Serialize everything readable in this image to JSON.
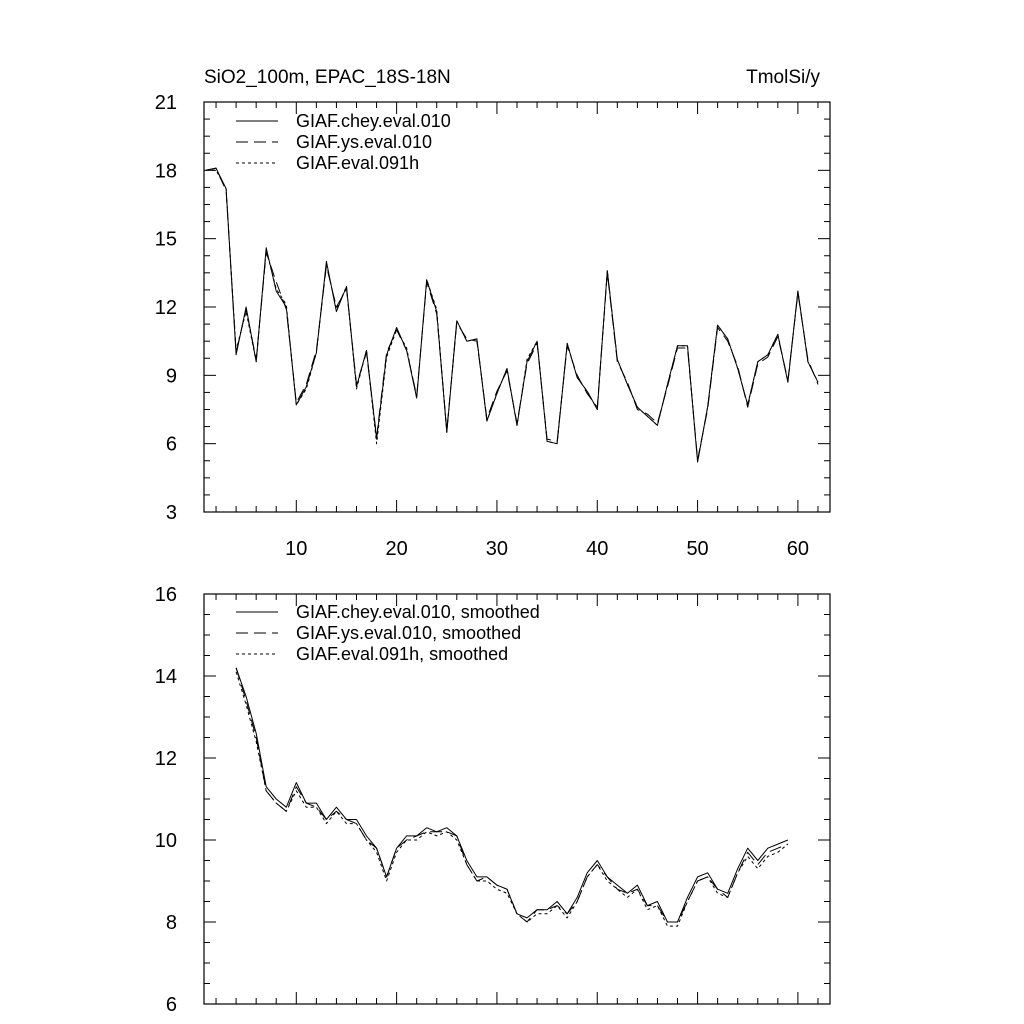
{
  "header": {
    "left_title": "SiO2_100m, EPAC_18S-18N",
    "right_title": "TmolSi/y"
  },
  "chart_data": [
    {
      "type": "line",
      "title": "",
      "xlabel": "",
      "ylabel": "",
      "xlim": [
        0.8,
        63.2
      ],
      "ylim": [
        3,
        21
      ],
      "x_ticks": [
        10,
        20,
        30,
        40,
        50,
        60
      ],
      "y_ticks": [
        3,
        6,
        9,
        12,
        15,
        18,
        21
      ],
      "legend_position": "top-left",
      "grid": false,
      "series": [
        {
          "name": "GIAF.chey.eval.010",
          "dash": "solid",
          "x": [
            1,
            2,
            3,
            4,
            5,
            6,
            7,
            8,
            9,
            10,
            11,
            12,
            13,
            14,
            15,
            16,
            17,
            18,
            19,
            20,
            21,
            22,
            23,
            24,
            25,
            26,
            27,
            28,
            29,
            30,
            31,
            32,
            33,
            34,
            35,
            36,
            37,
            38,
            39,
            40,
            41,
            42,
            43,
            44,
            45,
            46,
            47,
            48,
            49,
            50,
            51,
            52,
            53,
            54,
            55,
            56,
            57,
            58,
            59,
            60,
            61,
            62
          ],
          "values": [
            18.0,
            18.1,
            17.2,
            9.9,
            12.0,
            9.6,
            14.6,
            12.7,
            12.0,
            7.7,
            8.5,
            10.0,
            14.0,
            11.8,
            12.9,
            8.5,
            10.1,
            6.2,
            9.9,
            11.1,
            10.1,
            8.0,
            13.2,
            11.8,
            6.5,
            11.4,
            10.5,
            10.6,
            7.0,
            8.2,
            9.3,
            6.8,
            9.6,
            10.5,
            6.1,
            6.0,
            10.4,
            8.9,
            8.3,
            7.5,
            13.6,
            9.7,
            8.6,
            7.6,
            7.2,
            6.8,
            8.6,
            10.3,
            10.3,
            5.2,
            7.6,
            11.2,
            10.6,
            9.3,
            7.7,
            9.6,
            9.9,
            10.8,
            8.7,
            12.7,
            9.6,
            8.7
          ]
        },
        {
          "name": "GIAF.ys.eval.010",
          "dash": "long-dash",
          "x": [
            1,
            2,
            3,
            4,
            5,
            6,
            7,
            8,
            9,
            10,
            11,
            12,
            13,
            14,
            15,
            16,
            17,
            18,
            19,
            20,
            21,
            22,
            23,
            24,
            25,
            26,
            27,
            28,
            29,
            30,
            31,
            32,
            33,
            34,
            35,
            36,
            37,
            38,
            39,
            40,
            41,
            42,
            43,
            44,
            45,
            46,
            47,
            48,
            49,
            50,
            51,
            52,
            53,
            54,
            55,
            56,
            57,
            58,
            59,
            60,
            61,
            62
          ],
          "values": [
            18.0,
            18.1,
            17.1,
            10.0,
            11.9,
            9.7,
            14.4,
            13.1,
            11.9,
            7.8,
            8.6,
            10.1,
            13.8,
            12.0,
            12.8,
            8.6,
            10.0,
            6.3,
            10.0,
            11.0,
            10.1,
            8.1,
            13.1,
            11.7,
            6.6,
            11.3,
            10.6,
            10.5,
            7.1,
            8.3,
            9.2,
            6.9,
            9.5,
            10.4,
            6.2,
            6.1,
            10.3,
            9.0,
            8.2,
            7.6,
            13.5,
            9.6,
            8.7,
            7.5,
            7.3,
            6.9,
            8.5,
            10.2,
            10.2,
            5.3,
            7.5,
            11.1,
            10.5,
            9.4,
            7.6,
            9.5,
            9.8,
            10.7,
            8.8,
            12.6,
            9.7,
            8.6
          ]
        },
        {
          "name": "GIAF.eval.091h",
          "dash": "dotted",
          "x": [
            1,
            2,
            3,
            4,
            5,
            6,
            7,
            8,
            9,
            10,
            11,
            12,
            13,
            14,
            15,
            16,
            17,
            18,
            19,
            20,
            21,
            22,
            23,
            24,
            25,
            26,
            27,
            28,
            29,
            30,
            31,
            32,
            33,
            34,
            35,
            36,
            37,
            38,
            39,
            40,
            41,
            42,
            43,
            44,
            45,
            46,
            47,
            48,
            49,
            50,
            51,
            52,
            53,
            54,
            55,
            56,
            57,
            58,
            59,
            60,
            61,
            62
          ],
          "values": [
            18.0,
            18.0,
            17.2,
            10.1,
            11.8,
            9.6,
            14.5,
            12.8,
            12.1,
            7.7,
            8.4,
            10.0,
            13.9,
            11.9,
            12.9,
            8.4,
            10.1,
            6.0,
            9.8,
            11.0,
            10.2,
            8.0,
            13.2,
            11.9,
            6.5,
            11.4,
            10.5,
            10.6,
            7.0,
            8.2,
            9.3,
            6.8,
            9.7,
            10.5,
            6.1,
            6.0,
            10.4,
            8.9,
            8.3,
            7.5,
            13.6,
            9.7,
            8.6,
            7.6,
            7.2,
            6.8,
            8.6,
            10.3,
            10.3,
            5.2,
            7.6,
            11.2,
            10.6,
            9.3,
            7.7,
            9.6,
            9.9,
            10.8,
            8.7,
            12.7,
            9.6,
            8.7
          ]
        }
      ]
    },
    {
      "type": "line",
      "title": "",
      "xlabel": "",
      "ylabel": "",
      "xlim": [
        0.8,
        63.2
      ],
      "ylim": [
        6,
        16
      ],
      "x_ticks": [
        10,
        20,
        30,
        40,
        50,
        60
      ],
      "x_tick_labels_shown": false,
      "y_ticks": [
        6,
        8,
        10,
        12,
        14,
        16
      ],
      "legend_position": "top-left",
      "grid": false,
      "series": [
        {
          "name": "GIAF.chey.eval.010, smoothed",
          "dash": "solid",
          "x": [
            4,
            5,
            6,
            7,
            8,
            9,
            10,
            11,
            12,
            13,
            14,
            15,
            16,
            17,
            18,
            19,
            20,
            21,
            22,
            23,
            24,
            25,
            26,
            27,
            28,
            29,
            30,
            31,
            32,
            33,
            34,
            35,
            36,
            37,
            38,
            39,
            40,
            41,
            42,
            43,
            44,
            45,
            46,
            47,
            48,
            49,
            50,
            51,
            52,
            53,
            54,
            55,
            56,
            57,
            58,
            59
          ],
          "values": [
            14.2,
            13.5,
            12.6,
            11.3,
            11.0,
            10.8,
            11.4,
            10.9,
            10.9,
            10.5,
            10.8,
            10.5,
            10.5,
            10.1,
            9.8,
            9.1,
            9.8,
            10.1,
            10.1,
            10.3,
            10.2,
            10.3,
            10.1,
            9.5,
            9.1,
            9.1,
            8.9,
            8.8,
            8.2,
            8.1,
            8.3,
            8.3,
            8.5,
            8.2,
            8.6,
            9.2,
            9.5,
            9.1,
            8.9,
            8.7,
            8.9,
            8.4,
            8.5,
            8.0,
            8.0,
            8.6,
            9.1,
            9.2,
            8.8,
            8.7,
            9.3,
            9.8,
            9.5,
            9.8,
            9.9,
            10.0
          ]
        },
        {
          "name": "GIAF.ys.eval.010, smoothed",
          "dash": "long-dash",
          "x": [
            4,
            5,
            6,
            7,
            8,
            9,
            10,
            11,
            12,
            13,
            14,
            15,
            16,
            17,
            18,
            19,
            20,
            21,
            22,
            23,
            24,
            25,
            26,
            27,
            28,
            29,
            30,
            31,
            32,
            33,
            34,
            35,
            36,
            37,
            38,
            39,
            40,
            41,
            42,
            43,
            44,
            45,
            46,
            47,
            48,
            49,
            50,
            51,
            52,
            53,
            54,
            55,
            56,
            57,
            58,
            59
          ],
          "values": [
            14.2,
            13.4,
            12.5,
            11.2,
            10.9,
            10.7,
            11.3,
            10.9,
            10.8,
            10.5,
            10.7,
            10.5,
            10.4,
            10.0,
            9.8,
            9.1,
            9.8,
            10.0,
            10.1,
            10.2,
            10.2,
            10.2,
            10.1,
            9.4,
            9.0,
            9.1,
            8.9,
            8.8,
            8.2,
            8.0,
            8.3,
            8.3,
            8.4,
            8.2,
            8.5,
            9.1,
            9.4,
            9.1,
            8.8,
            8.7,
            8.8,
            8.4,
            8.4,
            8.0,
            8.0,
            8.5,
            9.0,
            9.1,
            8.8,
            8.6,
            9.2,
            9.7,
            9.4,
            9.7,
            9.8,
            9.9
          ]
        },
        {
          "name": "GIAF.eval.091h, smoothed",
          "dash": "dotted",
          "x": [
            4,
            5,
            6,
            7,
            8,
            9,
            10,
            11,
            12,
            13,
            14,
            15,
            16,
            17,
            18,
            19,
            20,
            21,
            22,
            23,
            24,
            25,
            26,
            27,
            28,
            29,
            30,
            31,
            32,
            33,
            34,
            35,
            36,
            37,
            38,
            39,
            40,
            41,
            42,
            43,
            44,
            45,
            46,
            47,
            48,
            49,
            50,
            51,
            52,
            53,
            54,
            55,
            56,
            57,
            58,
            59
          ],
          "values": [
            14.1,
            13.3,
            12.4,
            11.2,
            10.9,
            10.7,
            11.2,
            10.8,
            10.8,
            10.4,
            10.7,
            10.4,
            10.4,
            10.0,
            9.7,
            9.0,
            9.7,
            10.0,
            10.0,
            10.2,
            10.1,
            10.2,
            10.0,
            9.4,
            9.0,
            9.0,
            8.8,
            8.7,
            8.2,
            8.0,
            8.2,
            8.2,
            8.4,
            8.1,
            8.5,
            9.1,
            9.4,
            9.0,
            8.8,
            8.6,
            8.8,
            8.3,
            8.4,
            7.9,
            7.9,
            8.5,
            9.0,
            9.1,
            8.7,
            8.6,
            9.2,
            9.6,
            9.3,
            9.6,
            9.7,
            9.9
          ]
        }
      ]
    }
  ]
}
